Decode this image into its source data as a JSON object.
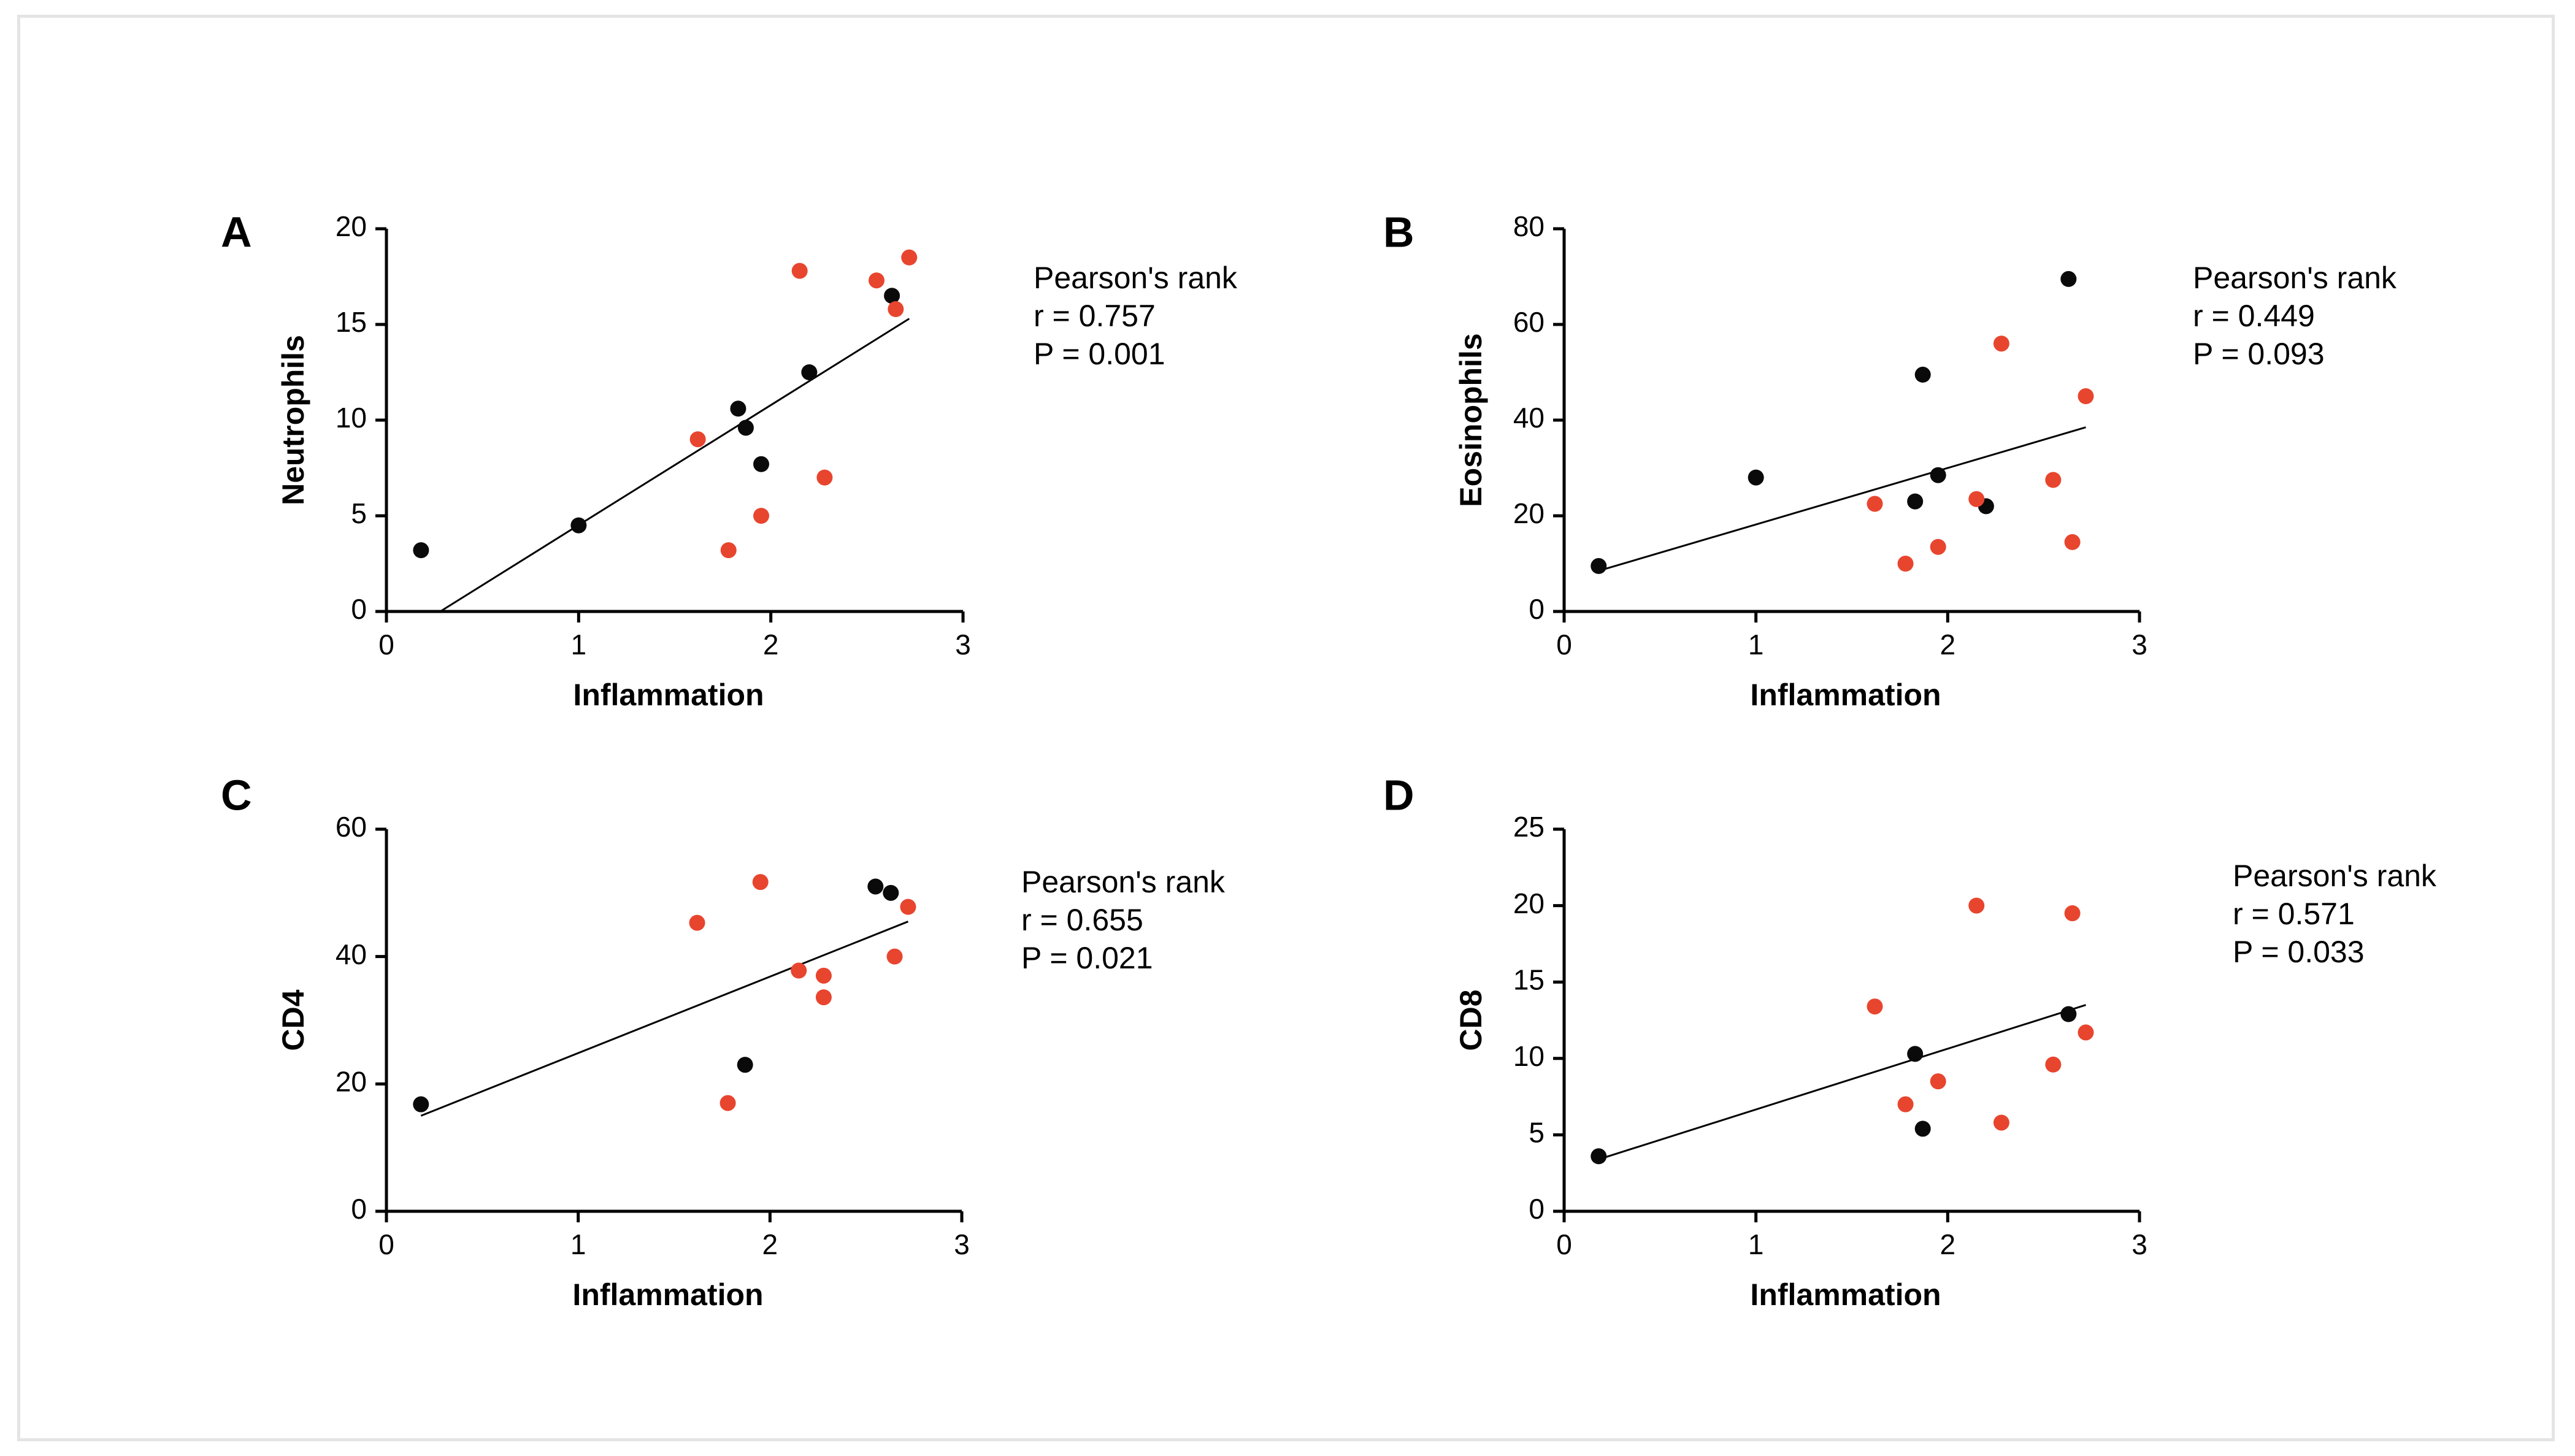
{
  "colors": {
    "black_group": "#0a0a0a",
    "red_group": "#e8452f",
    "axis": "#000000"
  },
  "chart_data": [
    {
      "type": "scatter",
      "panel": "A",
      "xlabel": "Inflammation",
      "ylabel": "Neutrophils",
      "xlim": [
        0,
        3
      ],
      "ylim": [
        0,
        20
      ],
      "xticks": [
        0,
        1,
        2,
        3
      ],
      "yticks": [
        0,
        5,
        10,
        15,
        20
      ],
      "stats": {
        "title": "Pearson's rank",
        "r": "r  = 0.757",
        "p": "P = 0.001"
      },
      "regression": {
        "x": [
          0.28,
          2.72
        ],
        "y": [
          0,
          15.3
        ]
      },
      "series": [
        {
          "name": "black",
          "color": "#0a0a0a",
          "points": [
            [
              0.18,
              3.2
            ],
            [
              1.0,
              4.5
            ],
            [
              1.83,
              10.6
            ],
            [
              1.87,
              9.6
            ],
            [
              1.95,
              7.7
            ],
            [
              2.2,
              12.5
            ],
            [
              2.63,
              16.5
            ]
          ]
        },
        {
          "name": "red",
          "color": "#e8452f",
          "points": [
            [
              1.62,
              9.0
            ],
            [
              1.78,
              3.2
            ],
            [
              1.95,
              5.0
            ],
            [
              2.15,
              17.8
            ],
            [
              2.28,
              7.0
            ],
            [
              2.55,
              17.3
            ],
            [
              2.65,
              15.8
            ],
            [
              2.72,
              18.5
            ]
          ]
        }
      ]
    },
    {
      "type": "scatter",
      "panel": "B",
      "xlabel": "Inflammation",
      "ylabel": "Eosinophils",
      "xlim": [
        0,
        3
      ],
      "ylim": [
        0,
        80
      ],
      "xticks": [
        0,
        1,
        2,
        3
      ],
      "yticks": [
        0,
        20,
        40,
        60,
        80
      ],
      "stats": {
        "title": "Pearson's rank",
        "r": "r  = 0.449",
        "p": "P = 0.093"
      },
      "regression": {
        "x": [
          0.18,
          2.72
        ],
        "y": [
          8.5,
          38.5
        ]
      },
      "series": [
        {
          "name": "black",
          "color": "#0a0a0a",
          "points": [
            [
              0.18,
              9.5
            ],
            [
              1.0,
              28.0
            ],
            [
              1.83,
              23.0
            ],
            [
              1.87,
              49.5
            ],
            [
              1.95,
              28.5
            ],
            [
              2.2,
              22.0
            ],
            [
              2.63,
              69.5
            ]
          ]
        },
        {
          "name": "red",
          "color": "#e8452f",
          "points": [
            [
              1.62,
              22.5
            ],
            [
              1.78,
              10.0
            ],
            [
              1.95,
              13.5
            ],
            [
              2.15,
              23.5
            ],
            [
              2.28,
              56.0
            ],
            [
              2.55,
              27.5
            ],
            [
              2.65,
              14.5
            ],
            [
              2.72,
              45.0
            ]
          ]
        }
      ]
    },
    {
      "type": "scatter",
      "panel": "C",
      "xlabel": "Inflammation",
      "ylabel": "CD4",
      "xlim": [
        0,
        3
      ],
      "ylim": [
        0,
        60
      ],
      "xticks": [
        0,
        1,
        2,
        3
      ],
      "yticks": [
        0,
        20,
        40,
        60
      ],
      "stats": {
        "title": "Pearson's rank",
        "r": "r  = 0.655",
        "p": "P = 0.021"
      },
      "regression": {
        "x": [
          0.18,
          2.72
        ],
        "y": [
          15.0,
          45.5
        ]
      },
      "series": [
        {
          "name": "black",
          "color": "#0a0a0a",
          "points": [
            [
              0.18,
              16.8
            ],
            [
              1.87,
              23.0
            ],
            [
              2.55,
              51.0
            ],
            [
              2.63,
              50.0
            ]
          ]
        },
        {
          "name": "red",
          "color": "#e8452f",
          "points": [
            [
              1.62,
              45.3
            ],
            [
              1.78,
              17.0
            ],
            [
              1.95,
              51.7
            ],
            [
              2.15,
              37.8
            ],
            [
              2.28,
              37.0
            ],
            [
              2.28,
              33.6
            ],
            [
              2.65,
              40.0
            ],
            [
              2.72,
              47.8
            ]
          ]
        }
      ]
    },
    {
      "type": "scatter",
      "panel": "D",
      "xlabel": "Inflammation",
      "ylabel": "CD8",
      "xlim": [
        0,
        3
      ],
      "ylim": [
        0,
        25
      ],
      "xticks": [
        0,
        1,
        2,
        3
      ],
      "yticks": [
        0,
        5,
        10,
        15,
        20,
        25
      ],
      "stats": {
        "title": "Pearson's rank",
        "r": "r  = 0.571",
        "p": "P = 0.033"
      },
      "regression": {
        "x": [
          0.18,
          2.72
        ],
        "y": [
          3.4,
          13.5
        ]
      },
      "series": [
        {
          "name": "black",
          "color": "#0a0a0a",
          "points": [
            [
              0.18,
              3.6
            ],
            [
              1.83,
              10.3
            ],
            [
              1.87,
              5.4
            ],
            [
              2.63,
              12.9
            ]
          ]
        },
        {
          "name": "red",
          "color": "#e8452f",
          "points": [
            [
              1.62,
              13.4
            ],
            [
              1.78,
              7.0
            ],
            [
              1.95,
              8.5
            ],
            [
              2.15,
              20.0
            ],
            [
              2.28,
              5.8
            ],
            [
              2.55,
              9.6
            ],
            [
              2.65,
              19.5
            ],
            [
              2.72,
              11.7
            ]
          ]
        }
      ]
    }
  ]
}
